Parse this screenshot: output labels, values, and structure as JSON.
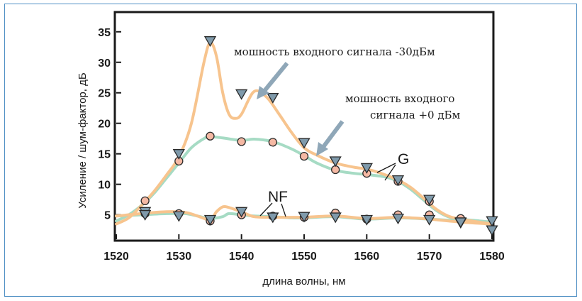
{
  "chart_data": {
    "type": "line",
    "title": "",
    "xlabel": "длина волны, нм",
    "ylabel": "Усиление / шум-фактор, дБ",
    "xlim": [
      1520,
      1580
    ],
    "ylim": [
      1,
      38
    ],
    "x_ticks": [
      "1520",
      "1530",
      "1540",
      "1550",
      "1560",
      "1570",
      "1580"
    ],
    "y_ticks": [
      "5",
      "10",
      "15",
      "20",
      "25",
      "30",
      "35"
    ],
    "grid": false,
    "colors": {
      "orange": "#f7c48e",
      "green": "#a6dbc4",
      "frame": "#4f8fc4",
      "arrow": "#8fa7b8",
      "triangle": "#7f9aab",
      "circle": "#f5b9a4"
    },
    "annotations": {
      "low_power": "мошность входного сигнала -30дБм",
      "high_power_line1": "мошность входного",
      "high_power_line2": "сигнала +0 дБм",
      "gain": "G",
      "noise_figure": "NF"
    },
    "series": [
      {
        "key": "gain_minus30",
        "line": "orange",
        "marker": "triangle",
        "curve_x": [
          1520,
          1522,
          1524,
          1526,
          1528,
          1530,
          1532,
          1534,
          1535,
          1536,
          1537,
          1538,
          1539,
          1540,
          1542,
          1544,
          1546,
          1548,
          1550,
          1552,
          1555,
          1558,
          1560,
          1562,
          1565,
          1567,
          1569,
          1571,
          1573,
          1575,
          1578,
          1580
        ],
        "curve_y": [
          3.5,
          4.5,
          6.5,
          8.8,
          11.5,
          14.5,
          20,
          30,
          33.2,
          31,
          25,
          21.5,
          20.8,
          21.5,
          25.2,
          24.3,
          21.5,
          18.5,
          16,
          14.8,
          13.5,
          12.8,
          12.5,
          11.9,
          10.7,
          9.5,
          7.8,
          6,
          4.8,
          4.3,
          3.8,
          3.5
        ],
        "markers_x": [
          1524.6,
          1530,
          1535,
          1540,
          1545,
          1550,
          1555,
          1560,
          1565,
          1570,
          1575,
          1580
        ],
        "markers_y": [
          5.5,
          15,
          33.5,
          24.8,
          24.2,
          16.8,
          13.8,
          12.7,
          10.7,
          7.5,
          3.7,
          4
        ]
      },
      {
        "key": "gain_0",
        "line": "green",
        "marker": "circle",
        "curve_x": [
          1520,
          1522,
          1524,
          1526,
          1528,
          1530,
          1532,
          1534,
          1535,
          1537,
          1540,
          1542,
          1545,
          1548,
          1550,
          1552,
          1555,
          1558,
          1560,
          1563,
          1565,
          1567,
          1569,
          1571,
          1573,
          1575,
          1578,
          1580
        ],
        "curve_y": [
          4,
          5,
          6.5,
          8.5,
          11,
          13.5,
          16,
          17.5,
          17.8,
          17.6,
          17.2,
          17.4,
          17,
          15.8,
          14.7,
          13.5,
          12.3,
          11.8,
          11.6,
          11.2,
          10.5,
          9.2,
          7.5,
          5.8,
          4.7,
          4.3,
          4,
          3.8
        ],
        "markers_x": [
          1524.6,
          1530,
          1535,
          1540,
          1545,
          1550,
          1555,
          1560,
          1565,
          1570,
          1575
        ],
        "markers_y": [
          7.3,
          13.8,
          17.9,
          17,
          16.9,
          14.6,
          12.4,
          11.8,
          10.5,
          7.2,
          4.4
        ]
      },
      {
        "key": "nf_minus30",
        "line": "orange",
        "marker": "triangle",
        "curve_x": [
          1520,
          1524,
          1528,
          1531,
          1533,
          1535,
          1536,
          1537,
          1538,
          1540,
          1542,
          1545,
          1548,
          1550,
          1555,
          1560,
          1565,
          1570,
          1575,
          1580
        ],
        "curve_y": [
          4.8,
          5.2,
          5.5,
          5.4,
          4.8,
          4.2,
          5.5,
          6.3,
          6.2,
          5.5,
          4.7,
          4.6,
          4.6,
          4.6,
          4.8,
          4.4,
          4.6,
          4.3,
          3.8,
          3.5
        ],
        "markers_x": [
          1524.6,
          1530,
          1535,
          1540,
          1545,
          1550,
          1555,
          1560,
          1565,
          1570,
          1575,
          1580
        ],
        "markers_y": [
          5,
          4.8,
          4.2,
          5.5,
          4.6,
          4.7,
          4.6,
          4.2,
          4.4,
          4.2,
          3.8,
          2.5
        ]
      },
      {
        "key": "nf_0",
        "line": "green",
        "marker": "circle",
        "curve_x": [
          1520,
          1524,
          1528,
          1531,
          1533,
          1535,
          1537,
          1538,
          1540,
          1542,
          1545,
          1548,
          1550,
          1555,
          1560,
          1565,
          1570,
          1575,
          1580
        ],
        "curve_y": [
          4.8,
          5,
          5.2,
          5.2,
          4.8,
          4.4,
          4.7,
          5.2,
          5,
          4.8,
          4.7,
          4.5,
          4.5,
          4.7,
          4.3,
          4.5,
          4.3,
          4,
          3.8
        ],
        "markers_x": [
          1524.6,
          1530,
          1535,
          1540,
          1545,
          1550,
          1555,
          1560,
          1565,
          1570
        ],
        "markers_y": [
          5.2,
          5.2,
          4,
          5,
          4.8,
          4.6,
          5.3,
          4.3,
          5,
          5
        ]
      }
    ]
  }
}
